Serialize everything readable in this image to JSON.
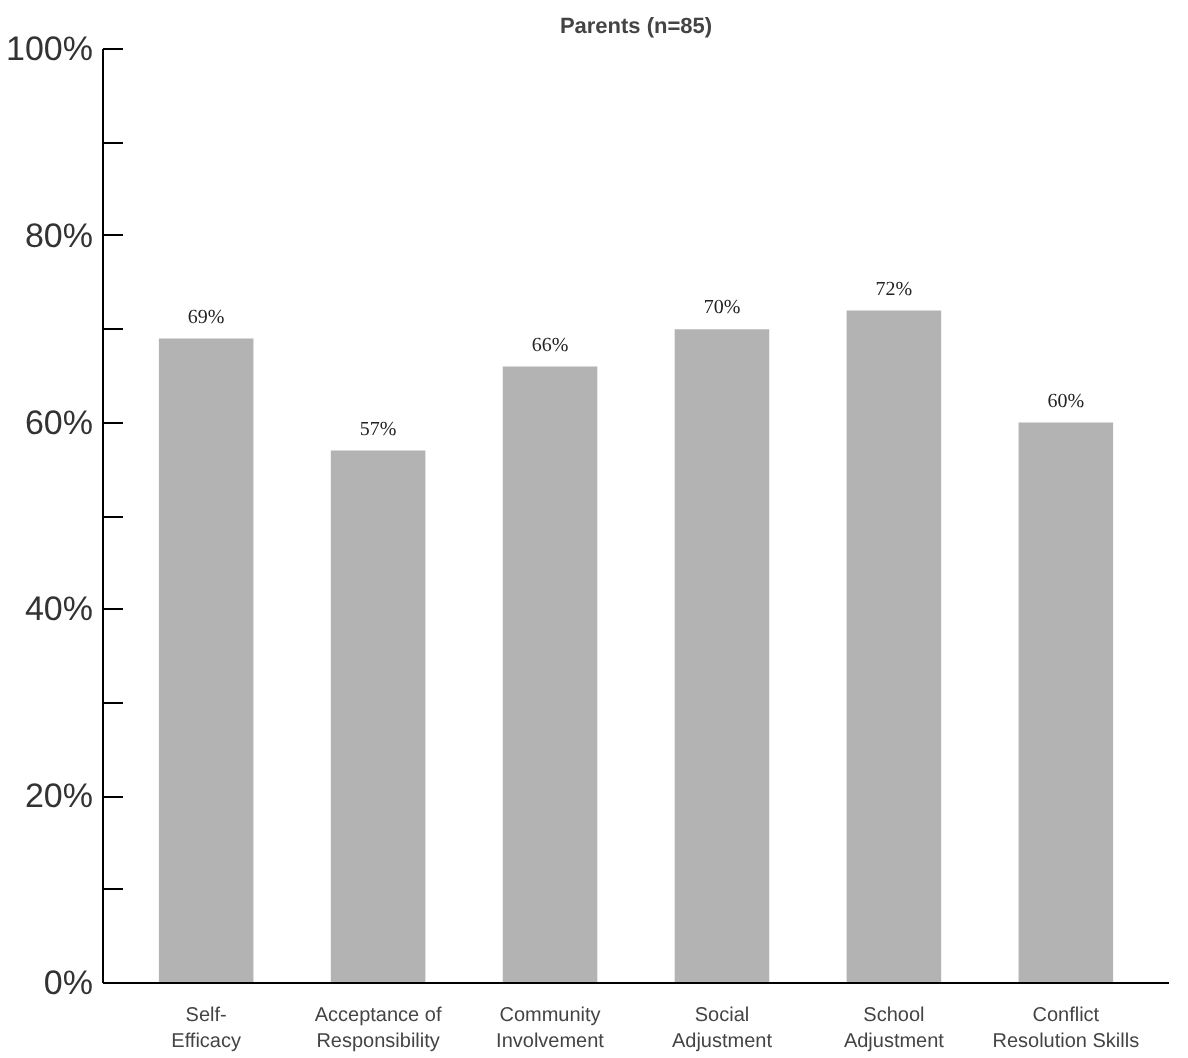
{
  "chart_data": {
    "type": "bar",
    "title": "Parents (n=85)",
    "categories": [
      "Self-\nEfficacy",
      "Acceptance of\nResponsibility",
      "Community\nInvolvement",
      "Social\nAdjustment",
      "School\nAdjustment",
      "Conflict\nResolution Skills"
    ],
    "values": [
      69,
      57,
      66,
      70,
      72,
      60
    ],
    "value_labels": [
      "69%",
      "57%",
      "66%",
      "70%",
      "72%",
      "60%"
    ],
    "color": "#b3b3b3",
    "ylim": [
      0,
      100
    ],
    "yticks": [
      {
        "value": 0,
        "label": "0%"
      },
      {
        "value": 10,
        "label": null
      },
      {
        "value": 20,
        "label": "20%"
      },
      {
        "value": 30,
        "label": null
      },
      {
        "value": 40,
        "label": "40%"
      },
      {
        "value": 50,
        "label": null
      },
      {
        "value": 60,
        "label": "60%"
      },
      {
        "value": 70,
        "label": null
      },
      {
        "value": 80,
        "label": "80%"
      },
      {
        "value": 90,
        "label": null
      },
      {
        "value": 100,
        "label": "100%"
      }
    ],
    "grid": false
  }
}
